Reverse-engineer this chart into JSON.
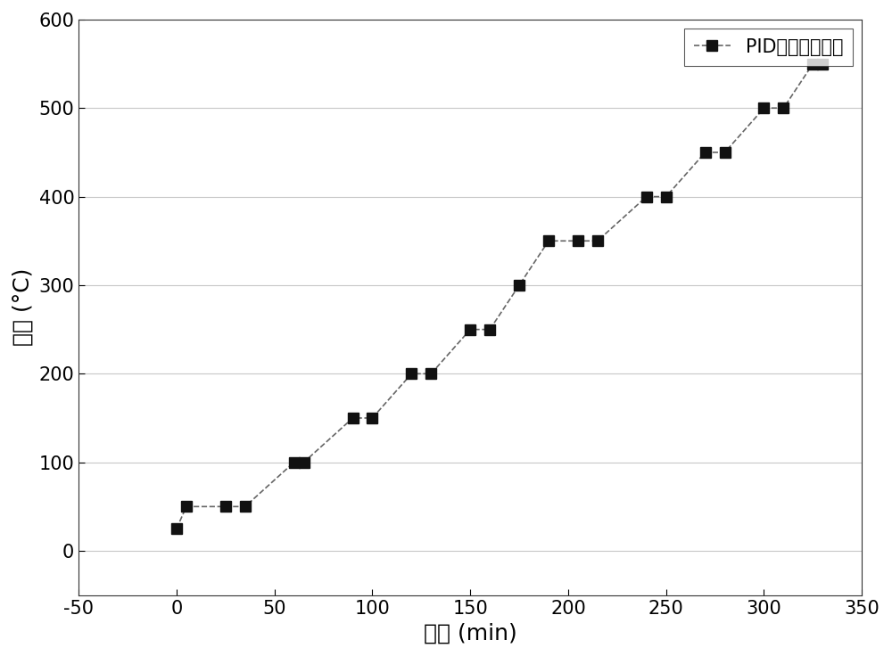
{
  "x": [
    0,
    5,
    25,
    35,
    60,
    65,
    90,
    100,
    120,
    130,
    150,
    160,
    175,
    190,
    205,
    215,
    240,
    250,
    270,
    280,
    300,
    310,
    325,
    330
  ],
  "y": [
    25,
    50,
    50,
    50,
    100,
    100,
    150,
    150,
    200,
    200,
    250,
    250,
    300,
    350,
    350,
    350,
    400,
    400,
    450,
    450,
    500,
    500,
    550,
    550
  ],
  "xlabel": "时间 (min)",
  "ylabel": "温度 (°C)",
  "legend_label": "PID温度时间曲线",
  "xlim": [
    -50,
    350
  ],
  "ylim": [
    -50,
    600
  ],
  "xticks": [
    -50,
    0,
    50,
    100,
    150,
    200,
    250,
    300,
    350
  ],
  "yticks": [
    0,
    100,
    200,
    300,
    400,
    500,
    600
  ],
  "line_color": "#666666",
  "marker_color": "#111111",
  "marker": "s",
  "marker_size": 8,
  "line_width": 1.2,
  "grid_color": "#c8c8c8",
  "background_color": "#ffffff",
  "xlabel_fontsize": 18,
  "ylabel_fontsize": 18,
  "tick_fontsize": 15,
  "legend_fontsize": 15
}
